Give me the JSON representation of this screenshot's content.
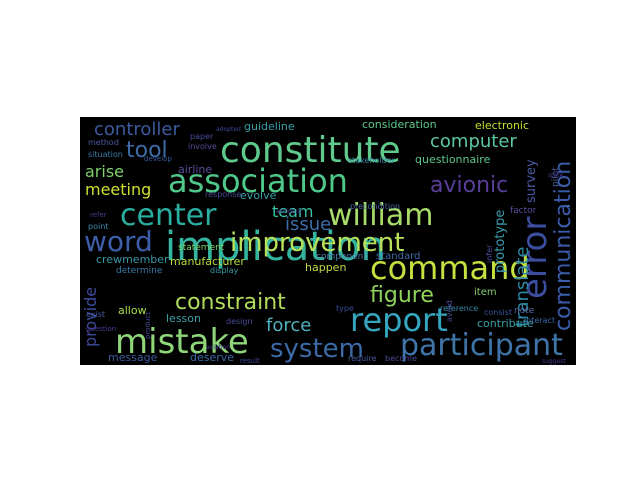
{
  "word_cloud": {
    "background": "#000000",
    "palette": [
      "#440154",
      "#3b528b",
      "#21918c",
      "#5ec962",
      "#c8e020"
    ],
    "words": [
      {
        "text": "constitute",
        "color": "#5fca8c"
      },
      {
        "text": "association",
        "color": "#4ec98a"
      },
      {
        "text": "implication",
        "color": "#33b5a0"
      },
      {
        "text": "center",
        "color": "#2aaea0"
      },
      {
        "text": "william",
        "color": "#a8dd6a"
      },
      {
        "text": "improvement",
        "color": "#b8e05a"
      },
      {
        "text": "word",
        "color": "#3d5ea8"
      },
      {
        "text": "command",
        "color": "#c6e03f"
      },
      {
        "text": "mistake",
        "color": "#8fd67a"
      },
      {
        "text": "report",
        "color": "#34a6c0"
      },
      {
        "text": "participant",
        "color": "#3f74a8"
      },
      {
        "text": "system",
        "color": "#3b6aa6"
      },
      {
        "text": "error",
        "color": "#3c4ea0"
      },
      {
        "text": "communication",
        "color": "#3a5ca8"
      },
      {
        "text": "avionic",
        "color": "#5a3f9a"
      },
      {
        "text": "constraint",
        "color": "#b2dd5a"
      },
      {
        "text": "figure",
        "color": "#8fd35c"
      },
      {
        "text": "controller",
        "color": "#3d5aa0"
      },
      {
        "text": "tool",
        "color": "#3c6ba7"
      },
      {
        "text": "computer",
        "color": "#5cc6a4"
      },
      {
        "text": "translate",
        "color": "#2e8aa8"
      },
      {
        "text": "provide",
        "color": "#3d4b9c"
      },
      {
        "text": "force",
        "color": "#4fb0c0"
      },
      {
        "text": "issue",
        "color": "#3f6da8"
      },
      {
        "text": "team",
        "color": "#36c3a8"
      },
      {
        "text": "arise",
        "color": "#7ecf6a"
      },
      {
        "text": "meeting",
        "color": "#cde030"
      },
      {
        "text": "prototype",
        "color": "#3b9db0"
      },
      {
        "text": "survey",
        "color": "#4a5aa5"
      },
      {
        "text": "consideration",
        "color": "#5ec98a"
      },
      {
        "text": "electronic",
        "color": "#c5df2e"
      },
      {
        "text": "guideline",
        "color": "#3aa0a8"
      },
      {
        "text": "questionnaire",
        "color": "#5ec98a"
      },
      {
        "text": "evolve",
        "color": "#3aa0a8"
      },
      {
        "text": "airline",
        "color": "#5a4ea0"
      },
      {
        "text": "manufacturer",
        "color": "#b8dd40"
      },
      {
        "text": "crewmember",
        "color": "#3a96a8"
      },
      {
        "text": "happen",
        "color": "#c0dd48"
      },
      {
        "text": "component",
        "color": "#4a7aa8"
      },
      {
        "text": "standard",
        "color": "#3f6aa5"
      },
      {
        "text": "item",
        "color": "#86cf70"
      },
      {
        "text": "allow",
        "color": "#a8dd50"
      },
      {
        "text": "lesson",
        "color": "#3aa0a8"
      },
      {
        "text": "message",
        "color": "#3b5a9c"
      },
      {
        "text": "deserve",
        "color": "#3a6aa5"
      },
      {
        "text": "contribute",
        "color": "#3aa0a8"
      },
      {
        "text": "statement",
        "color": "#7fcf6a"
      },
      {
        "text": "determine",
        "color": "#3a7aa8"
      },
      {
        "text": "display",
        "color": "#3a9aa8"
      },
      {
        "text": "method",
        "color": "#4a5aa0"
      },
      {
        "text": "situation",
        "color": "#3a7aa8"
      },
      {
        "text": "point",
        "color": "#3a8aa8"
      },
      {
        "text": "exist",
        "color": "#4a5aa0"
      },
      {
        "text": "note",
        "color": "#5a6aa5"
      },
      {
        "text": "reference",
        "color": "#3a8aa8"
      },
      {
        "text": "precondition",
        "color": "#4a6aa0"
      },
      {
        "text": "response",
        "color": "#4a4a9a"
      },
      {
        "text": "involve",
        "color": "#5a4a9a"
      },
      {
        "text": "develop",
        "color": "#3a5a9c"
      },
      {
        "text": "paper",
        "color": "#4a4a9a"
      },
      {
        "text": "stakeholder",
        "color": "#3a8aa8"
      },
      {
        "text": "factor",
        "color": "#5a4a9a"
      },
      {
        "text": "design",
        "color": "#4a4a9a"
      },
      {
        "text": "require",
        "color": "#4a5aa0"
      },
      {
        "text": "become",
        "color": "#4a4a9a"
      },
      {
        "text": "interact",
        "color": "#3a6aa5"
      },
      {
        "text": "avoid",
        "color": "#4a4a9a"
      },
      {
        "text": "consist",
        "color": "#3a5a9c"
      },
      {
        "text": "infer",
        "color": "#4a4a9a"
      },
      {
        "text": "pilot",
        "color": "#4a5aa0"
      },
      {
        "text": "type",
        "color": "#3a4a9a"
      },
      {
        "text": "product",
        "color": "#4a4a9a"
      },
      {
        "text": "result",
        "color": "#3a4a9a"
      },
      {
        "text": "refer",
        "color": "#4a3a90"
      },
      {
        "text": "adopted",
        "color": "#3a4a9a"
      },
      {
        "text": "question",
        "color": "#4a3a90"
      },
      {
        "text": "suggest",
        "color": "#4a3a90"
      },
      {
        "text": "aviation",
        "color": "#4a3a90"
      },
      {
        "text": "state",
        "color": "#4a3a90"
      },
      {
        "text": "accident",
        "color": "#4a3a90"
      }
    ]
  }
}
